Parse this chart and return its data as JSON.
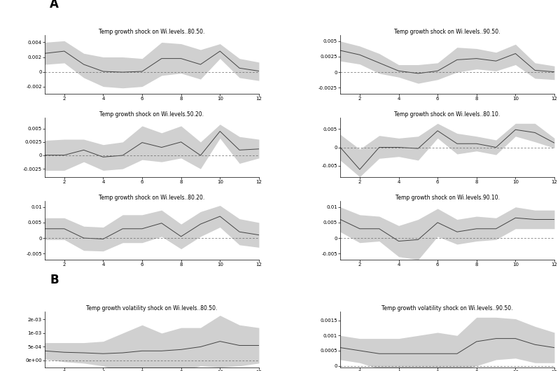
{
  "x": [
    1,
    2,
    3,
    4,
    5,
    6,
    7,
    8,
    9,
    10,
    11,
    12
  ],
  "titles_A": [
    "Temp growth shock on Wi.levels..80.50.",
    "Temp growth shock on Wi.levels..90.50.",
    "Temp growth shock on Wi.levels.50.20.",
    "Temp growth shock on Wi.levels..80.10.",
    "Temp growth shock on Wi.levels..80.20.",
    "Temp growth shock on Wi.levels.90.10."
  ],
  "titles_B": [
    "Temp growth volatility shock on Wi.levels..80.50.",
    "Temp growth volatility shock on Wi.levels..90.50."
  ],
  "panels": {
    "A1L": {
      "mean": [
        0.0025,
        0.0028,
        0.001,
        5e-05,
        -5e-05,
        5e-05,
        0.0018,
        0.0018,
        0.001,
        0.0028,
        0.0005,
        0.0001
      ],
      "upper": [
        0.004,
        0.0042,
        0.0025,
        0.002,
        0.002,
        0.0018,
        0.004,
        0.0038,
        0.003,
        0.0038,
        0.0018,
        0.0013
      ],
      "lower": [
        0.001,
        0.0012,
        -0.0008,
        -0.002,
        -0.0022,
        -0.002,
        -0.0005,
        -0.0002,
        -0.001,
        0.0018,
        -0.0008,
        -0.0012
      ],
      "ylim": [
        -0.003,
        0.005
      ],
      "yticks": [
        -0.002,
        0.0,
        0.002,
        0.004
      ]
    },
    "A1R": {
      "mean": [
        0.0035,
        0.0028,
        0.0015,
        0.0002,
        -0.0002,
        0.0002,
        0.002,
        0.0022,
        0.0018,
        0.003,
        0.0003,
        5e-05
      ],
      "upper": [
        0.005,
        0.0042,
        0.003,
        0.0012,
        0.0012,
        0.0015,
        0.004,
        0.0038,
        0.0032,
        0.0045,
        0.0015,
        0.001
      ],
      "lower": [
        0.0018,
        0.0013,
        -0.0002,
        -0.0008,
        -0.0018,
        -0.0012,
        0.0,
        0.0005,
        0.0002,
        0.0012,
        -0.001,
        -0.0012
      ],
      "ylim": [
        -0.0035,
        0.006
      ],
      "yticks": [
        -0.0025,
        0.0,
        0.0025,
        0.005
      ]
    },
    "A2L": {
      "mean": [
        5e-05,
        5e-05,
        0.001,
        -0.0003,
        0.0,
        0.0024,
        0.0015,
        0.0025,
        0.0,
        0.0045,
        0.001,
        0.0012
      ],
      "upper": [
        0.0028,
        0.003,
        0.003,
        0.002,
        0.0025,
        0.0055,
        0.0042,
        0.0055,
        0.0025,
        0.0058,
        0.0035,
        0.003
      ],
      "lower": [
        -0.0028,
        -0.0028,
        -0.0012,
        -0.0028,
        -0.0025,
        -0.0008,
        -0.0012,
        -0.0005,
        -0.0025,
        0.0032,
        -0.0015,
        -0.0005
      ],
      "ylim": [
        -0.004,
        0.007
      ],
      "yticks": [
        -0.0025,
        0.0,
        0.0025,
        0.005
      ]
    },
    "A2R": {
      "mean": [
        0.0,
        -0.006,
        0.0,
        0.0,
        -0.0003,
        0.0045,
        0.001,
        0.001,
        0.0,
        0.0048,
        0.004,
        0.0012
      ],
      "upper": [
        0.0035,
        -0.0005,
        0.0032,
        0.0025,
        0.003,
        0.0065,
        0.0038,
        0.003,
        0.002,
        0.0065,
        0.0065,
        0.0025
      ],
      "lower": [
        -0.0035,
        -0.008,
        -0.003,
        -0.0025,
        -0.0035,
        0.0025,
        -0.0018,
        -0.001,
        -0.002,
        0.003,
        0.0015,
        -0.0002
      ],
      "ylim": [
        -0.008,
        0.008
      ],
      "yticks": [
        -0.005,
        0.0,
        0.005
      ]
    },
    "A3L": {
      "mean": [
        0.003,
        0.003,
        0.0,
        -0.0003,
        0.003,
        0.003,
        0.0048,
        0.0005,
        0.0045,
        0.007,
        0.002,
        0.001
      ],
      "upper": [
        0.0065,
        0.0065,
        0.0038,
        0.0035,
        0.0075,
        0.0075,
        0.009,
        0.0045,
        0.0085,
        0.0105,
        0.0062,
        0.005
      ],
      "lower": [
        -0.0005,
        -0.0005,
        -0.004,
        -0.0042,
        -0.0015,
        -0.0015,
        0.0005,
        -0.0035,
        0.0005,
        0.0035,
        -0.0022,
        -0.003
      ],
      "ylim": [
        -0.007,
        0.012
      ],
      "yticks": [
        -0.005,
        0.0,
        0.005,
        0.01
      ]
    },
    "A3R": {
      "mean": [
        0.006,
        0.003,
        0.003,
        -0.001,
        -0.0005,
        0.005,
        0.002,
        0.003,
        0.003,
        0.0065,
        0.006,
        0.006
      ],
      "upper": [
        0.01,
        0.0075,
        0.007,
        0.004,
        0.006,
        0.0095,
        0.006,
        0.007,
        0.0065,
        0.01,
        0.009,
        0.009
      ],
      "lower": [
        0.002,
        -0.0015,
        -0.001,
        -0.006,
        -0.007,
        0.0005,
        -0.002,
        -0.001,
        -0.0005,
        0.003,
        0.003,
        0.003
      ],
      "ylim": [
        -0.007,
        0.012
      ],
      "yticks": [
        -0.005,
        0.0,
        0.005,
        0.01
      ]
    },
    "B1L": {
      "mean": [
        0.00035,
        0.0003,
        0.00028,
        0.00025,
        0.00028,
        0.00035,
        0.00035,
        0.0004,
        0.0005,
        0.0007,
        0.00055,
        0.00055
      ],
      "upper": [
        0.00065,
        0.00065,
        0.00065,
        0.0007,
        0.001,
        0.0013,
        0.001,
        0.0012,
        0.0012,
        0.00165,
        0.0013,
        0.0012
      ],
      "lower": [
        5e-05,
        -5e-05,
        -0.0001,
        -0.0002,
        -0.00045,
        -0.0006,
        -0.0003,
        -0.0004,
        -0.0002,
        -0.00025,
        -0.0002,
        -0.0001
      ],
      "ylim": [
        -0.00025,
        0.0018
      ],
      "yticks": [
        0.0,
        0.0005,
        0.001,
        0.0015
      ],
      "use_sci": true
    },
    "B1R": {
      "mean": [
        0.0006,
        0.0005,
        0.0004,
        0.0004,
        0.0004,
        0.0004,
        0.0004,
        0.0008,
        0.0009,
        0.0009,
        0.0007,
        0.0006
      ],
      "upper": [
        0.001,
        0.0009,
        0.0009,
        0.0009,
        0.001,
        0.0011,
        0.001,
        0.0016,
        0.0016,
        0.00155,
        0.0013,
        0.0011
      ],
      "lower": [
        0.0002,
        0.0001,
        -0.0001,
        -0.0001,
        -0.0002,
        -0.0003,
        -0.0002,
        0.0,
        0.0002,
        0.00025,
        0.0001,
        0.0001
      ],
      "ylim": [
        -5e-05,
        0.0018
      ],
      "yticks": [
        0.0,
        0.0005,
        0.001,
        0.0015
      ],
      "use_sci": false
    }
  },
  "line_color": "#444444",
  "band_color": "#d0d0d0",
  "dashed_color": "#666666",
  "title_fontsize": 5.5,
  "tick_fontsize": 5,
  "label_A": "A",
  "label_B": "B"
}
